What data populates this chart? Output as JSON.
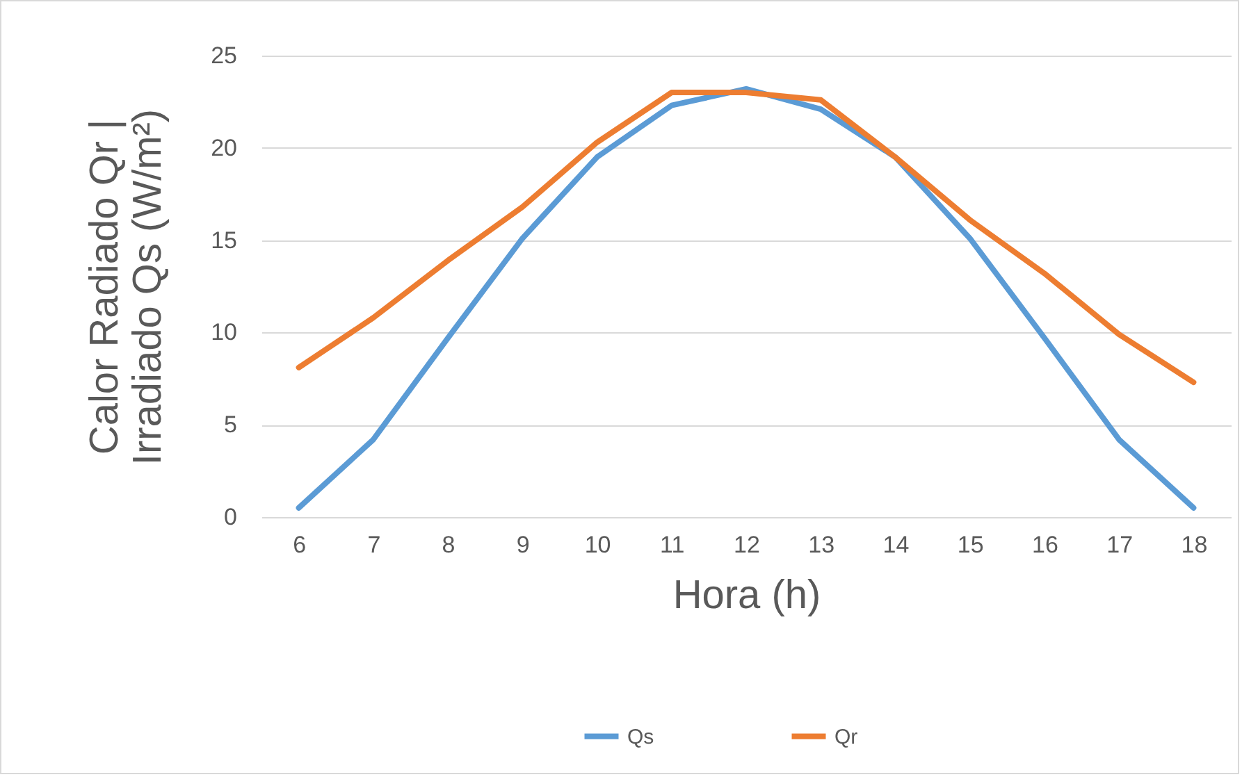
{
  "chart_data": {
    "type": "line",
    "xlabel": "Hora (h)",
    "ylabel": "Calor Radiado  Qr |\nIrradiado Qs (W/m²)",
    "categories": [
      "6",
      "7",
      "8",
      "9",
      "10",
      "11",
      "12",
      "13",
      "14",
      "15",
      "16",
      "17",
      "18"
    ],
    "series": [
      {
        "name": "Qs",
        "color": "#5b9bd5",
        "values": [
          0.5,
          4.2,
          9.7,
          15.1,
          19.5,
          22.3,
          23.2,
          22.1,
          19.5,
          15.1,
          9.7,
          4.2,
          0.5
        ]
      },
      {
        "name": "Qr",
        "color": "#ed7d31",
        "values": [
          8.1,
          10.8,
          13.9,
          16.8,
          20.3,
          23.0,
          23.0,
          22.6,
          19.5,
          16.1,
          13.2,
          9.9,
          7.3
        ]
      }
    ],
    "ylim": [
      0,
      25
    ],
    "yticks": [
      0,
      5,
      10,
      15,
      20,
      25
    ],
    "grid": "y",
    "legend": "bottom",
    "marker": "none",
    "line_style": "solid"
  }
}
